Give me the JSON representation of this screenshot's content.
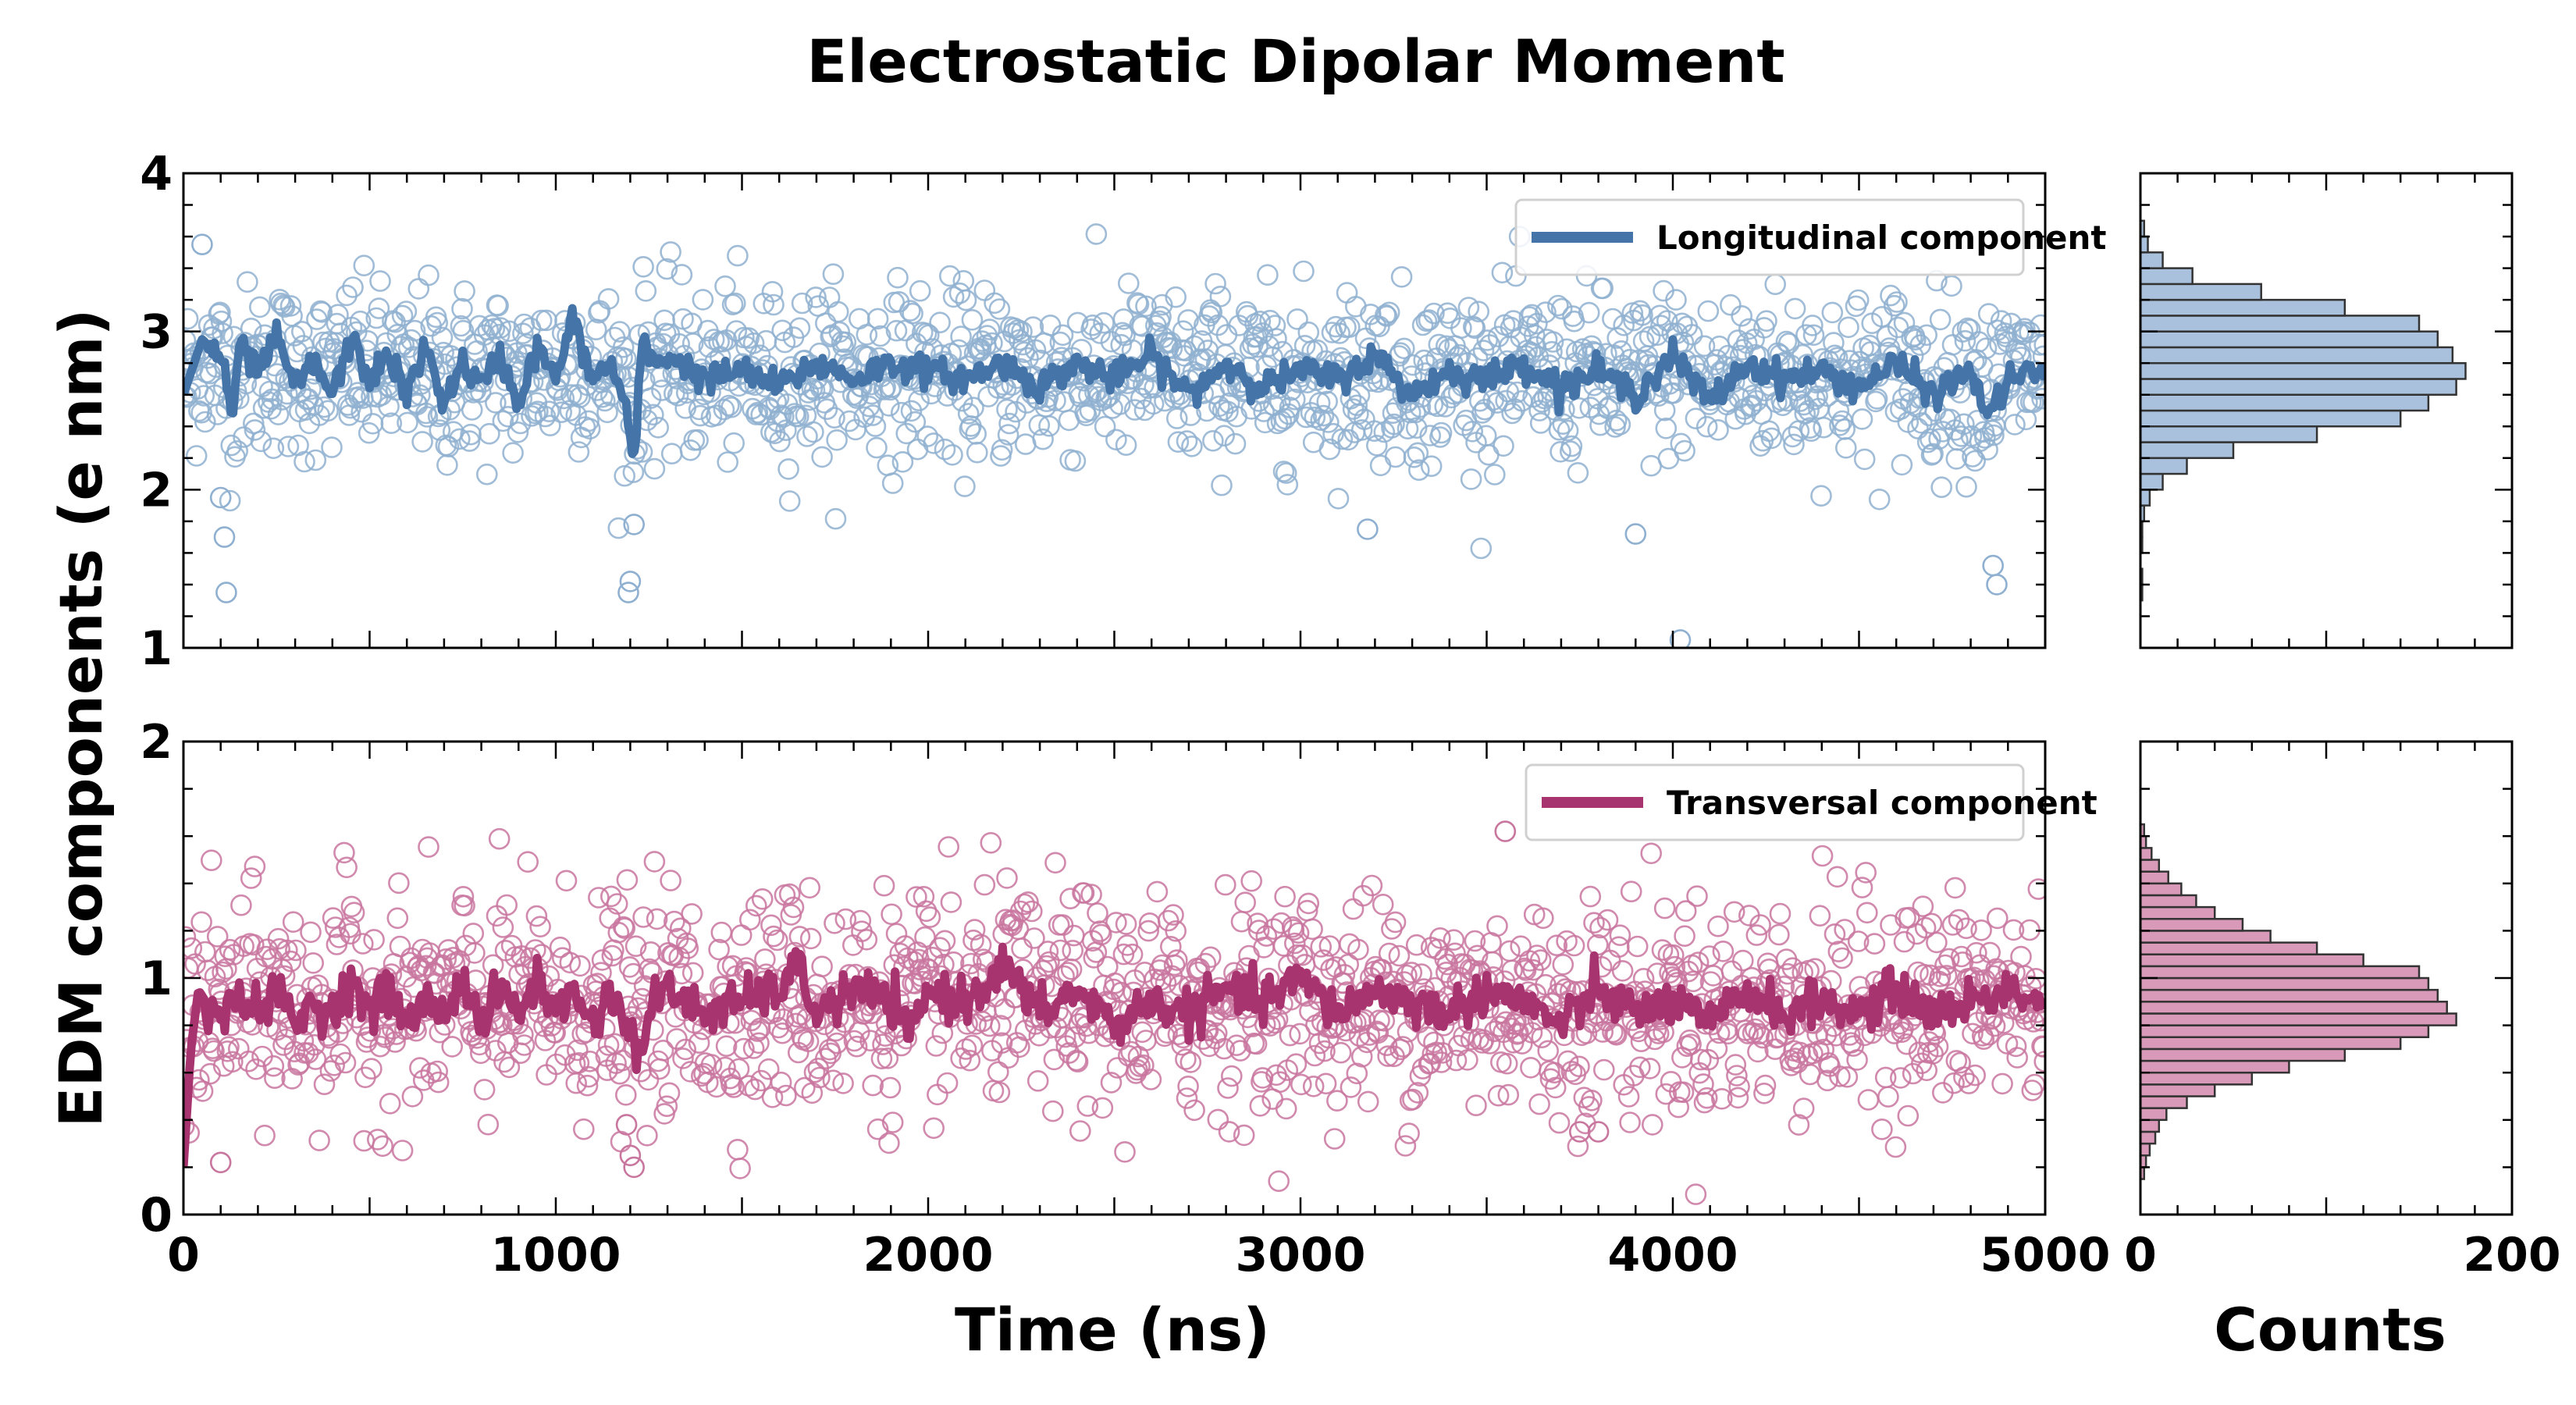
{
  "figure": {
    "title": "Electrostatic Dipolar Moment",
    "ylabel": "EDM components (e nm)",
    "xlabel": "Time (ns)",
    "hist_xlabel": "Counts"
  },
  "colors": {
    "longitudinal": "#4575a8",
    "longitudinal_marker": "#8fb0d0",
    "longitudinal_bar": "#a9c1dc",
    "transversal": "#a8346f",
    "transversal_marker": "#c9769f",
    "transversal_bar": "#d99ab9"
  },
  "chart_data": [
    {
      "type": "scatter",
      "panel": "top-time-series",
      "x_range": [
        0,
        5000
      ],
      "ylim": [
        1,
        4
      ],
      "x_ticks": [
        "0",
        "1000",
        "2000",
        "3000",
        "4000",
        "5000"
      ],
      "y_ticks": [
        "1",
        "2",
        "3",
        "4"
      ],
      "grid": false,
      "legend": "top-right",
      "series": [
        {
          "name": "Longitudinal component",
          "kind": "scatter+moving-average",
          "mean": 2.72,
          "spread_sd": 0.27,
          "moving_average": {
            "x": [
              0,
              50,
              100,
              130,
              150,
              200,
              250,
              300,
              350,
              400,
              450,
              500,
              550,
              600,
              650,
              700,
              750,
              800,
              850,
              900,
              950,
              1000,
              1050,
              1080,
              1100,
              1150,
              1190,
              1210,
              1230,
              1260,
              1300,
              1400,
              1500,
              1600,
              1700,
              1800,
              1900,
              2000,
              2100,
              2200,
              2300,
              2400,
              2500,
              2600,
              2700,
              2800,
              2900,
              3000,
              3100,
              3200,
              3300,
              3400,
              3500,
              3600,
              3700,
              3800,
              3900,
              4000,
              4100,
              4200,
              4300,
              4400,
              4500,
              4600,
              4700,
              4800,
              4850,
              4900,
              5000
            ],
            "y": [
              2.6,
              2.95,
              2.85,
              2.45,
              2.9,
              2.75,
              2.95,
              2.65,
              2.8,
              2.6,
              2.95,
              2.7,
              2.85,
              2.6,
              2.9,
              2.55,
              2.8,
              2.65,
              2.85,
              2.55,
              2.9,
              2.7,
              3.1,
              2.8,
              2.7,
              2.8,
              2.5,
              2.1,
              2.95,
              2.8,
              2.85,
              2.7,
              2.75,
              2.65,
              2.8,
              2.7,
              2.8,
              2.75,
              2.7,
              2.8,
              2.65,
              2.8,
              2.7,
              2.85,
              2.6,
              2.8,
              2.65,
              2.75,
              2.7,
              2.85,
              2.6,
              2.75,
              2.7,
              2.8,
              2.65,
              2.75,
              2.6,
              2.85,
              2.55,
              2.8,
              2.7,
              2.75,
              2.65,
              2.8,
              2.6,
              2.75,
              2.45,
              2.7,
              2.75
            ]
          },
          "outliers": {
            "x": [
              50,
              100,
              110,
              115,
              1195,
              1200,
              1210,
              3180,
              3900,
              4020,
              4860,
              4870
            ],
            "y": [
              3.55,
              1.95,
              1.7,
              1.35,
              1.35,
              1.42,
              1.78,
              1.75,
              1.72,
              1.05,
              1.52,
              1.4
            ]
          }
        }
      ]
    },
    {
      "type": "scatter",
      "panel": "bottom-time-series",
      "x_range": [
        0,
        5000
      ],
      "ylim": [
        0,
        2
      ],
      "x_ticks": [
        "0",
        "1000",
        "2000",
        "3000",
        "4000",
        "5000"
      ],
      "y_ticks": [
        "0",
        "1",
        "2"
      ],
      "grid": false,
      "legend": "top-right",
      "series": [
        {
          "name": "Transversal component",
          "kind": "scatter+moving-average",
          "mean": 0.88,
          "spread_sd": 0.23,
          "moving_average": {
            "x": [
              0,
              20,
              40,
              60,
              100,
              150,
              200,
              250,
              300,
              350,
              400,
              450,
              500,
              550,
              600,
              650,
              700,
              750,
              800,
              850,
              900,
              950,
              1000,
              1050,
              1100,
              1150,
              1200,
              1230,
              1260,
              1300,
              1400,
              1500,
              1600,
              1650,
              1700,
              1800,
              1900,
              1950,
              2000,
              2100,
              2200,
              2300,
              2400,
              2500,
              2600,
              2700,
              2800,
              2900,
              3000,
              3100,
              3200,
              3300,
              3400,
              3500,
              3600,
              3700,
              3800,
              3900,
              4000,
              4100,
              4200,
              4300,
              4400,
              4500,
              4600,
              4700,
              4800,
              4900,
              5000
            ],
            "y": [
              0.2,
              0.7,
              0.95,
              0.9,
              0.8,
              0.95,
              0.85,
              0.95,
              0.8,
              0.9,
              0.85,
              1.0,
              0.85,
              0.95,
              0.8,
              0.9,
              0.85,
              1.0,
              0.8,
              0.95,
              0.85,
              1.0,
              0.85,
              0.95,
              0.8,
              0.95,
              0.75,
              0.7,
              0.9,
              0.95,
              0.85,
              0.9,
              0.95,
              1.05,
              0.85,
              0.95,
              0.9,
              0.75,
              0.95,
              0.9,
              1.05,
              0.85,
              0.95,
              0.8,
              0.9,
              0.85,
              0.95,
              0.9,
              1.0,
              0.85,
              0.95,
              0.9,
              0.85,
              0.95,
              0.9,
              0.8,
              0.95,
              0.85,
              0.9,
              0.8,
              0.95,
              0.85,
              0.9,
              0.85,
              0.95,
              0.85,
              0.9,
              0.95,
              0.9
            ]
          },
          "outliers": {
            "x": [
              100,
              1190,
              1200,
              1210,
              3550,
              3750,
              3800
            ],
            "y": [
              0.22,
              0.38,
              0.25,
              0.2,
              1.62,
              0.35,
              0.35
            ]
          }
        }
      ]
    },
    {
      "type": "bar",
      "orientation": "horizontal",
      "panel": "top-histogram",
      "x_range": [
        0,
        200
      ],
      "ylim": [
        1,
        4
      ],
      "grid": false,
      "bin_width": 0.1,
      "bins": [
        1.3,
        1.4,
        1.5,
        1.6,
        1.7,
        1.8,
        1.9,
        2.0,
        2.1,
        2.2,
        2.3,
        2.4,
        2.5,
        2.6,
        2.7,
        2.8,
        2.9,
        3.0,
        3.1,
        3.2,
        3.3,
        3.4,
        3.5,
        3.6
      ],
      "values": [
        1,
        1,
        0,
        1,
        1,
        2,
        5,
        12,
        25,
        50,
        95,
        140,
        155,
        170,
        175,
        168,
        160,
        150,
        110,
        65,
        28,
        12,
        4,
        2
      ]
    },
    {
      "type": "bar",
      "orientation": "horizontal",
      "panel": "bottom-histogram",
      "x_range": [
        0,
        200
      ],
      "ylim": [
        0,
        2
      ],
      "grid": false,
      "bin_width": 0.05,
      "bins": [
        0.15,
        0.2,
        0.25,
        0.3,
        0.35,
        0.4,
        0.45,
        0.5,
        0.55,
        0.6,
        0.65,
        0.7,
        0.75,
        0.8,
        0.85,
        0.9,
        0.95,
        1.0,
        1.05,
        1.1,
        1.15,
        1.2,
        1.25,
        1.3,
        1.35,
        1.4,
        1.45,
        1.5,
        1.55,
        1.6
      ],
      "values": [
        2,
        3,
        5,
        8,
        10,
        14,
        25,
        40,
        60,
        80,
        110,
        140,
        155,
        170,
        165,
        160,
        155,
        150,
        120,
        95,
        70,
        55,
        40,
        30,
        22,
        15,
        10,
        6,
        3,
        2
      ]
    }
  ]
}
